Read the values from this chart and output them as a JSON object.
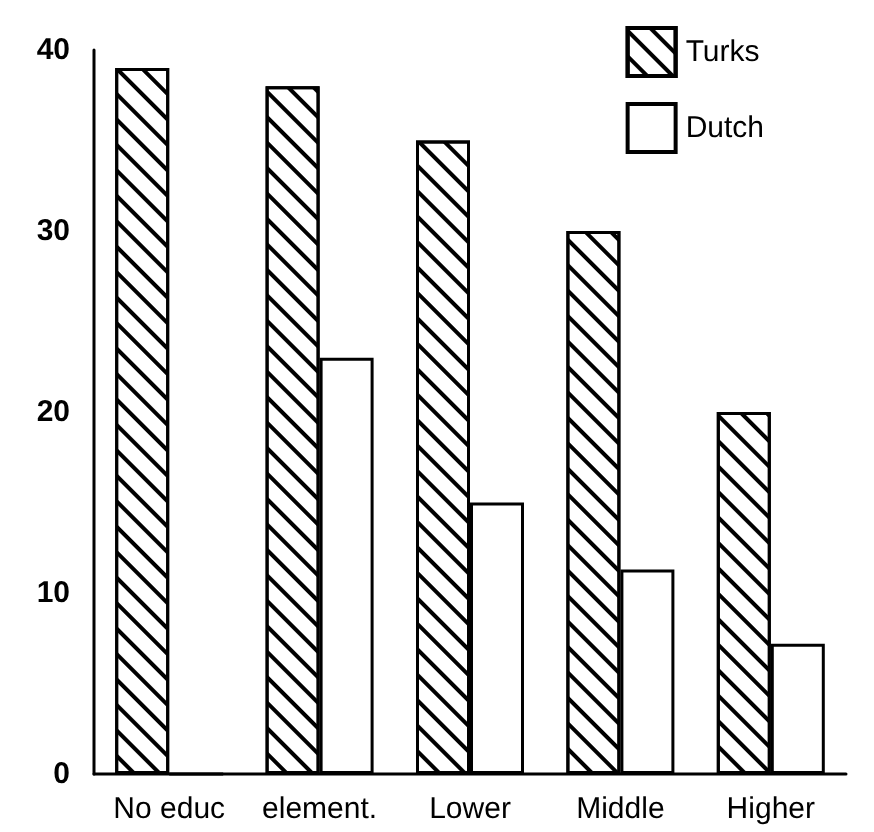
{
  "chart_data": {
    "type": "bar",
    "categories": [
      "No educ",
      "element.",
      "Lower",
      "Middle",
      "Higher"
    ],
    "series": [
      {
        "name": "Turks",
        "color": "#000000",
        "values": [
          39,
          38,
          35,
          30,
          20
        ]
      },
      {
        "name": "Dutch",
        "color": "#ffffff",
        "values": [
          0,
          23,
          15,
          11.3,
          7.2
        ]
      }
    ],
    "ylim": [
      0,
      40
    ],
    "yticks": [
      0,
      10,
      20,
      30,
      40
    ],
    "grid": false,
    "legend": "top right"
  }
}
